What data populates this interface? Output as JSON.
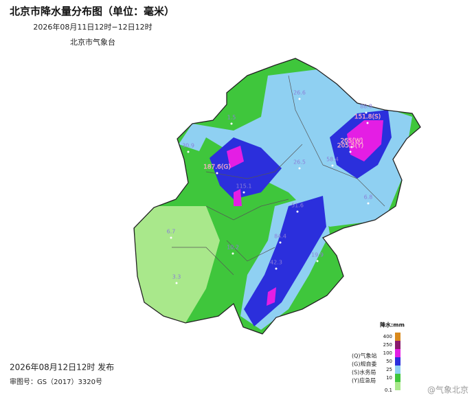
{
  "header": {
    "title": "北京市降水量分布图（单位：毫米）",
    "period": "2026年08月11日12时−12日12时",
    "agency": "北京市气象台"
  },
  "stations": [
    {
      "label": "26.6"
    },
    {
      "label": "1.5"
    },
    {
      "label": "88.8"
    },
    {
      "label": "151.8(S)"
    },
    {
      "label": "30.9"
    },
    {
      "label": "265(W)"
    },
    {
      "label": "205.5(Y)"
    },
    {
      "label": "187.6(G)"
    },
    {
      "label": "26.5"
    },
    {
      "label": "58.4"
    },
    {
      "label": "115.1"
    },
    {
      "label": "6.8"
    },
    {
      "label": "51.6"
    },
    {
      "label": "6.7"
    },
    {
      "label": "84.4"
    },
    {
      "label": "10.2"
    },
    {
      "label": "19.9"
    },
    {
      "label": "42.3"
    },
    {
      "label": "3.3"
    }
  ],
  "legend": {
    "title": "降水:mm",
    "levels": [
      {
        "label": "400",
        "color": "#d9891c"
      },
      {
        "label": "250",
        "color": "#8a1a6c"
      },
      {
        "label": "100",
        "color": "#e41ee4"
      },
      {
        "label": "50",
        "color": "#2b2fdc"
      },
      {
        "label": "25",
        "color": "#8fd0f2"
      },
      {
        "label": "10",
        "color": "#3fc63c"
      },
      {
        "label": "0.1",
        "color": "#a9e88b"
      }
    ],
    "notes": [
      "(Q)气象站",
      "(G)规自委",
      "(S)水务局",
      "(Y)应急局"
    ]
  },
  "footer": {
    "issued": "2026年08月12日12时 发布",
    "review": "审图号：GS（2017）3320号",
    "watermark": "@气象北京"
  }
}
